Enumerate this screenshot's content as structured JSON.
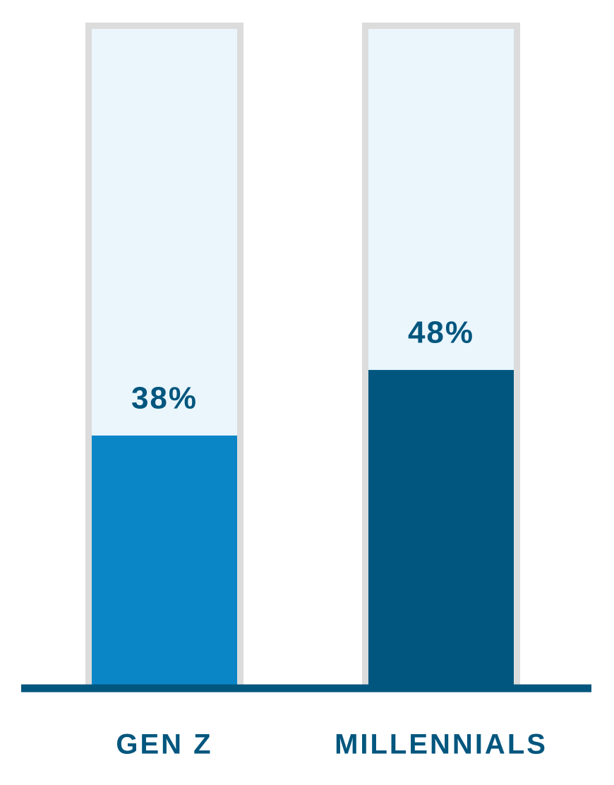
{
  "chart_data": {
    "type": "bar",
    "categories": [
      "GEN Z",
      "MILLENNIALS"
    ],
    "values": [
      38,
      48
    ],
    "value_labels": [
      "38%",
      "48%"
    ],
    "colors": [
      "#0a86c7",
      "#00567e"
    ],
    "ylim": [
      0,
      100
    ]
  }
}
